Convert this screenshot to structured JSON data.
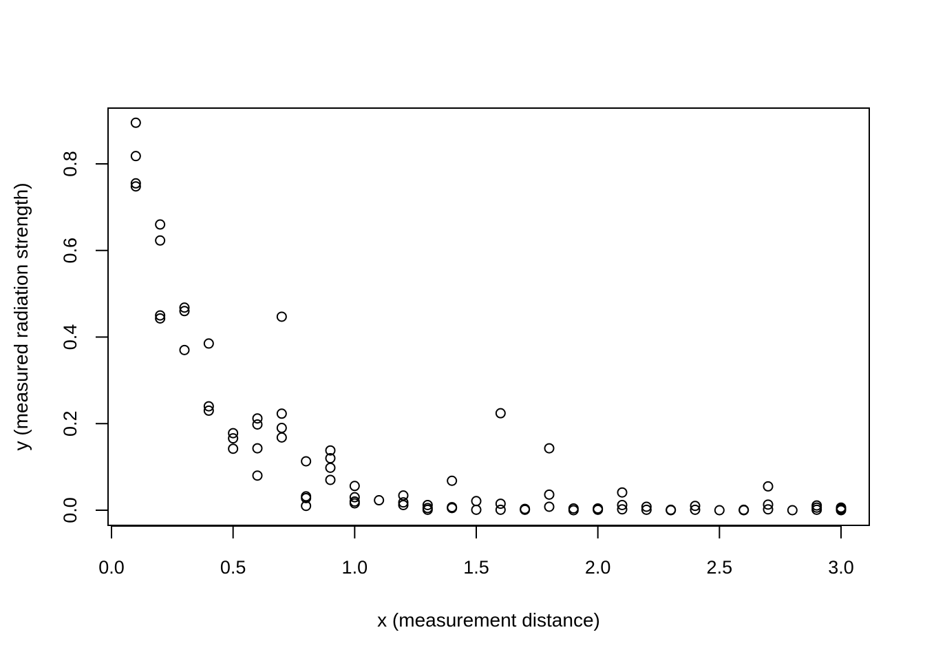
{
  "chart_data": {
    "type": "scatter",
    "title": "",
    "xlabel": "x (measurement distance)",
    "ylabel": "y (measured radiation strength)",
    "xlim": [
      0.0,
      3.0
    ],
    "ylim": [
      0.0,
      0.8
    ],
    "x_ticks": [
      "0.0",
      "0.5",
      "1.0",
      "1.5",
      "2.0",
      "2.5",
      "3.0"
    ],
    "y_ticks": [
      "0.0",
      "0.2",
      "0.4",
      "0.6",
      "0.8"
    ],
    "grid": false,
    "legend": "none",
    "point_color": "#000000",
    "points": [
      [
        0.1,
        0.895
      ],
      [
        0.1,
        0.818
      ],
      [
        0.1,
        0.755
      ],
      [
        0.1,
        0.748
      ],
      [
        0.2,
        0.66
      ],
      [
        0.2,
        0.623
      ],
      [
        0.2,
        0.45
      ],
      [
        0.2,
        0.443
      ],
      [
        0.3,
        0.468
      ],
      [
        0.3,
        0.46
      ],
      [
        0.3,
        0.37
      ],
      [
        0.4,
        0.385
      ],
      [
        0.4,
        0.24
      ],
      [
        0.4,
        0.23
      ],
      [
        0.5,
        0.178
      ],
      [
        0.5,
        0.166
      ],
      [
        0.5,
        0.142
      ],
      [
        0.6,
        0.212
      ],
      [
        0.6,
        0.198
      ],
      [
        0.6,
        0.143
      ],
      [
        0.6,
        0.08
      ],
      [
        0.7,
        0.447
      ],
      [
        0.7,
        0.223
      ],
      [
        0.7,
        0.19
      ],
      [
        0.7,
        0.168
      ],
      [
        0.8,
        0.113
      ],
      [
        0.8,
        0.032
      ],
      [
        0.8,
        0.028
      ],
      [
        0.8,
        0.01
      ],
      [
        0.9,
        0.138
      ],
      [
        0.9,
        0.12
      ],
      [
        0.9,
        0.098
      ],
      [
        0.9,
        0.07
      ],
      [
        1.0,
        0.056
      ],
      [
        1.0,
        0.03
      ],
      [
        1.0,
        0.02
      ],
      [
        1.0,
        0.016
      ],
      [
        1.1,
        0.023
      ],
      [
        1.2,
        0.034
      ],
      [
        1.2,
        0.018
      ],
      [
        1.2,
        0.012
      ],
      [
        1.3,
        0.012
      ],
      [
        1.3,
        0.005
      ],
      [
        1.3,
        0.001
      ],
      [
        1.4,
        0.068
      ],
      [
        1.4,
        0.007
      ],
      [
        1.4,
        0.005
      ],
      [
        1.5,
        0.021
      ],
      [
        1.5,
        0.001
      ],
      [
        1.6,
        0.224
      ],
      [
        1.6,
        0.015
      ],
      [
        1.6,
        0.001
      ],
      [
        1.7,
        0.003
      ],
      [
        1.7,
        0.001
      ],
      [
        1.8,
        0.143
      ],
      [
        1.8,
        0.036
      ],
      [
        1.8,
        0.008
      ],
      [
        1.9,
        0.004
      ],
      [
        1.9,
        0.0
      ],
      [
        2.0,
        0.004
      ],
      [
        2.0,
        0.001
      ],
      [
        2.1,
        0.041
      ],
      [
        2.1,
        0.012
      ],
      [
        2.1,
        0.002
      ],
      [
        2.2,
        0.008
      ],
      [
        2.2,
        0.001
      ],
      [
        2.3,
        0.001
      ],
      [
        2.3,
        0.0
      ],
      [
        2.4,
        0.01
      ],
      [
        2.4,
        0.001
      ],
      [
        2.5,
        0.0
      ],
      [
        2.6,
        0.001
      ],
      [
        2.6,
        0.0
      ],
      [
        2.7,
        0.055
      ],
      [
        2.7,
        0.013
      ],
      [
        2.7,
        0.002
      ],
      [
        2.8,
        0.0
      ],
      [
        2.9,
        0.011
      ],
      [
        2.9,
        0.006
      ],
      [
        2.9,
        0.001
      ],
      [
        3.0,
        0.006
      ],
      [
        3.0,
        0.003
      ],
      [
        3.0,
        0.0
      ]
    ]
  }
}
